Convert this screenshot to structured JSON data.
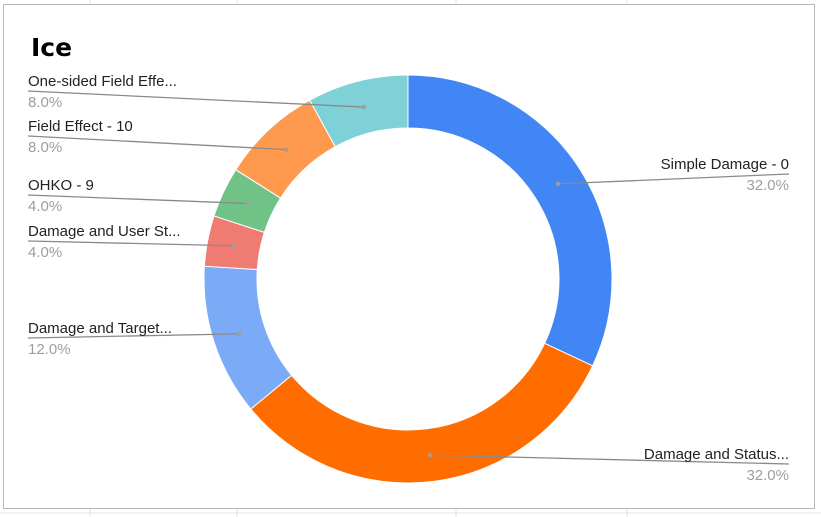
{
  "chart_data": {
    "type": "pie",
    "title": "Ice",
    "donut": true,
    "legend": "labels beside slices",
    "slices": [
      {
        "label": "Simple Damage - 0",
        "percent_label": "32.0%",
        "value": 32.0,
        "color": "#4285f4"
      },
      {
        "label": "Damage and Status...",
        "percent_label": "32.0%",
        "value": 32.0,
        "color": "#ff6d01"
      },
      {
        "label": "Damage and Target...",
        "percent_label": "12.0%",
        "value": 12.0,
        "color": "#7baaf7"
      },
      {
        "label": "Damage and User St...",
        "percent_label": "4.0%",
        "value": 4.0,
        "color": "#f07b72"
      },
      {
        "label": "OHKO - 9",
        "percent_label": "4.0%",
        "value": 4.0,
        "color": "#71c287"
      },
      {
        "label": "Field Effect - 10",
        "percent_label": "8.0%",
        "value": 8.0,
        "color": "#ff994d"
      },
      {
        "label": "One-sided Field Effe...",
        "percent_label": "8.0%",
        "value": 8.0,
        "color": "#7ed1d7"
      }
    ]
  }
}
